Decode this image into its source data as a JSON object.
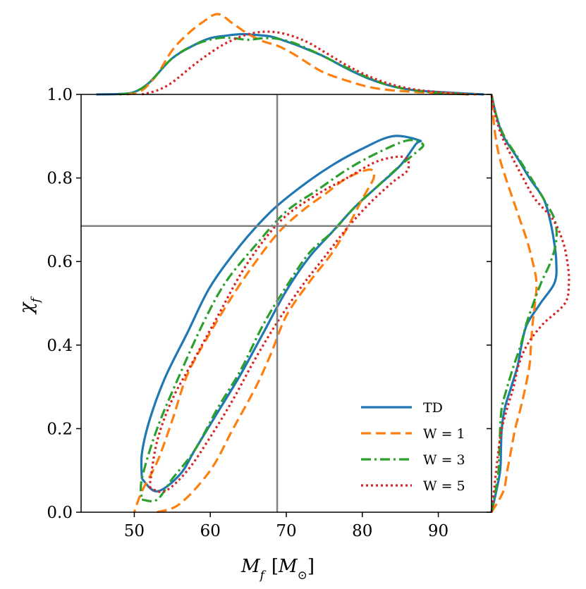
{
  "chart_data": {
    "type": "line",
    "title": "",
    "xlabel": "M_f [M_⊙]",
    "xlabel_main": "M",
    "xlabel_sub": "f",
    "xlabel_unit_open": "[",
    "xlabel_unit_main": "M",
    "xlabel_unit_sub": "⊙",
    "xlabel_unit_close": "]",
    "ylabel": "χ_f",
    "ylabel_main": "χ",
    "ylabel_sub": "f",
    "xlim": [
      43,
      97
    ],
    "ylim": [
      0.0,
      1.0
    ],
    "xticks": [
      50,
      60,
      70,
      80,
      90
    ],
    "xtick_labels": [
      "50",
      "60",
      "70",
      "80",
      "90"
    ],
    "yticks": [
      0.0,
      0.2,
      0.4,
      0.6,
      0.8,
      1.0
    ],
    "ytick_labels": [
      "0.0",
      "0.2",
      "0.4",
      "0.6",
      "0.8",
      "1.0"
    ],
    "grid": false,
    "legend_position": "lower-right",
    "reference_lines": {
      "x": 68.8,
      "y": 0.685,
      "color": "#808080"
    },
    "series": [
      {
        "name": "TD",
        "color": "#1f77b4",
        "dash": "solid",
        "contour": [
          [
            51,
            0.08
          ],
          [
            53,
            0.05
          ],
          [
            56,
            0.09
          ],
          [
            58,
            0.15
          ],
          [
            61,
            0.24
          ],
          [
            64,
            0.33
          ],
          [
            67,
            0.43
          ],
          [
            70,
            0.53
          ],
          [
            73,
            0.61
          ],
          [
            76,
            0.67
          ],
          [
            79,
            0.73
          ],
          [
            82,
            0.78
          ],
          [
            85,
            0.83
          ],
          [
            87,
            0.88
          ],
          [
            87.5,
            0.89
          ],
          [
            84,
            0.9
          ],
          [
            80,
            0.87
          ],
          [
            76,
            0.83
          ],
          [
            72,
            0.78
          ],
          [
            68,
            0.72
          ],
          [
            64,
            0.64
          ],
          [
            60,
            0.54
          ],
          [
            57,
            0.43
          ],
          [
            54,
            0.32
          ],
          [
            52,
            0.22
          ],
          [
            51,
            0.14
          ],
          [
            51,
            0.08
          ]
        ],
        "marginal_x": [
          [
            45,
            0.0
          ],
          [
            48,
            0.005
          ],
          [
            50,
            0.03
          ],
          [
            52,
            0.15
          ],
          [
            55,
            0.45
          ],
          [
            58,
            0.62
          ],
          [
            60,
            0.7
          ],
          [
            62,
            0.73
          ],
          [
            64,
            0.75
          ],
          [
            66,
            0.74
          ],
          [
            68,
            0.72
          ],
          [
            70,
            0.66
          ],
          [
            72,
            0.59
          ],
          [
            75,
            0.47
          ],
          [
            78,
            0.32
          ],
          [
            81,
            0.19
          ],
          [
            84,
            0.1
          ],
          [
            87,
            0.05
          ],
          [
            90,
            0.03
          ],
          [
            93,
            0.015
          ],
          [
            96,
            0.0
          ]
        ],
        "marginal_y": [
          [
            0.0,
            0.0
          ],
          [
            0.05,
            0.06
          ],
          [
            0.1,
            0.11
          ],
          [
            0.15,
            0.12
          ],
          [
            0.2,
            0.13
          ],
          [
            0.25,
            0.17
          ],
          [
            0.3,
            0.25
          ],
          [
            0.35,
            0.33
          ],
          [
            0.4,
            0.38
          ],
          [
            0.45,
            0.45
          ],
          [
            0.5,
            0.62
          ],
          [
            0.55,
            0.8
          ],
          [
            0.6,
            0.82
          ],
          [
            0.65,
            0.79
          ],
          [
            0.7,
            0.74
          ],
          [
            0.75,
            0.66
          ],
          [
            0.8,
            0.48
          ],
          [
            0.85,
            0.32
          ],
          [
            0.9,
            0.15
          ],
          [
            0.95,
            0.06
          ],
          [
            1.0,
            0.0
          ]
        ]
      },
      {
        "name": "W = 1",
        "color": "#ff7f0e",
        "dash": "dashed",
        "contour": [
          [
            53,
            0.0
          ],
          [
            56,
            0.02
          ],
          [
            60,
            0.1
          ],
          [
            63,
            0.2
          ],
          [
            66,
            0.3
          ],
          [
            68,
            0.38
          ],
          [
            70,
            0.47
          ],
          [
            73,
            0.55
          ],
          [
            76,
            0.62
          ],
          [
            78,
            0.68
          ],
          [
            80,
            0.75
          ],
          [
            81.5,
            0.8
          ],
          [
            81,
            0.82
          ],
          [
            78,
            0.8
          ],
          [
            75,
            0.76
          ],
          [
            72,
            0.72
          ],
          [
            69,
            0.67
          ],
          [
            66,
            0.6
          ],
          [
            63,
            0.52
          ],
          [
            60,
            0.43
          ],
          [
            57,
            0.33
          ],
          [
            55,
            0.22
          ],
          [
            53,
            0.12
          ],
          [
            51,
            0.05
          ],
          [
            50,
            0.0
          ]
        ],
        "marginal_x": [
          [
            49,
            0.0
          ],
          [
            51,
            0.05
          ],
          [
            53,
            0.25
          ],
          [
            55,
            0.55
          ],
          [
            57,
            0.75
          ],
          [
            59,
            0.9
          ],
          [
            61,
            1.0
          ],
          [
            63,
            0.88
          ],
          [
            65,
            0.75
          ],
          [
            67,
            0.66
          ],
          [
            69,
            0.6
          ],
          [
            71,
            0.5
          ],
          [
            73,
            0.38
          ],
          [
            75,
            0.27
          ],
          [
            78,
            0.17
          ],
          [
            81,
            0.09
          ],
          [
            84,
            0.05
          ],
          [
            87,
            0.03
          ],
          [
            91,
            0.01
          ],
          [
            95,
            0.0
          ]
        ],
        "marginal_y": [
          [
            0.0,
            0.0
          ],
          [
            0.05,
            0.15
          ],
          [
            0.1,
            0.2
          ],
          [
            0.15,
            0.25
          ],
          [
            0.2,
            0.3
          ],
          [
            0.25,
            0.37
          ],
          [
            0.3,
            0.43
          ],
          [
            0.35,
            0.48
          ],
          [
            0.4,
            0.5
          ],
          [
            0.45,
            0.52
          ],
          [
            0.5,
            0.55
          ],
          [
            0.55,
            0.57
          ],
          [
            0.6,
            0.52
          ],
          [
            0.65,
            0.45
          ],
          [
            0.7,
            0.36
          ],
          [
            0.75,
            0.27
          ],
          [
            0.8,
            0.18
          ],
          [
            0.85,
            0.1
          ],
          [
            0.9,
            0.05
          ],
          [
            0.95,
            0.02
          ],
          [
            1.0,
            0.0
          ]
        ]
      },
      {
        "name": "W = 3",
        "color": "#2ca02c",
        "dash": "dashdot",
        "contour": [
          [
            51,
            0.03
          ],
          [
            53,
            0.03
          ],
          [
            55,
            0.08
          ],
          [
            58,
            0.15
          ],
          [
            61,
            0.25
          ],
          [
            64,
            0.34
          ],
          [
            67,
            0.45
          ],
          [
            70,
            0.54
          ],
          [
            73,
            0.62
          ],
          [
            76,
            0.67
          ],
          [
            79,
            0.73
          ],
          [
            82,
            0.78
          ],
          [
            85,
            0.83
          ],
          [
            87,
            0.86
          ],
          [
            88,
            0.88
          ],
          [
            86,
            0.89
          ],
          [
            82,
            0.86
          ],
          [
            78,
            0.82
          ],
          [
            74,
            0.77
          ],
          [
            70,
            0.72
          ],
          [
            66,
            0.64
          ],
          [
            62,
            0.55
          ],
          [
            59,
            0.45
          ],
          [
            56,
            0.33
          ],
          [
            53,
            0.2
          ],
          [
            51,
            0.08
          ],
          [
            51,
            0.03
          ]
        ],
        "marginal_x": [
          [
            48,
            0.0
          ],
          [
            50,
            0.03
          ],
          [
            52,
            0.15
          ],
          [
            55,
            0.45
          ],
          [
            58,
            0.62
          ],
          [
            61,
            0.7
          ],
          [
            63,
            0.7
          ],
          [
            65,
            0.68
          ],
          [
            67,
            0.7
          ],
          [
            69,
            0.69
          ],
          [
            71,
            0.64
          ],
          [
            73,
            0.56
          ],
          [
            75,
            0.47
          ],
          [
            78,
            0.33
          ],
          [
            81,
            0.2
          ],
          [
            84,
            0.1
          ],
          [
            87,
            0.05
          ],
          [
            90,
            0.02
          ],
          [
            94,
            0.0
          ]
        ],
        "marginal_y": [
          [
            0.0,
            0.0
          ],
          [
            0.05,
            0.05
          ],
          [
            0.1,
            0.09
          ],
          [
            0.15,
            0.1
          ],
          [
            0.2,
            0.11
          ],
          [
            0.25,
            0.13
          ],
          [
            0.3,
            0.2
          ],
          [
            0.35,
            0.28
          ],
          [
            0.4,
            0.37
          ],
          [
            0.45,
            0.44
          ],
          [
            0.5,
            0.53
          ],
          [
            0.55,
            0.63
          ],
          [
            0.6,
            0.75
          ],
          [
            0.65,
            0.82
          ],
          [
            0.7,
            0.8
          ],
          [
            0.75,
            0.66
          ],
          [
            0.8,
            0.5
          ],
          [
            0.85,
            0.33
          ],
          [
            0.9,
            0.16
          ],
          [
            0.95,
            0.06
          ],
          [
            1.0,
            0.0
          ]
        ]
      },
      {
        "name": "W = 5",
        "color": "#d62728",
        "dash": "dotted",
        "contour": [
          [
            52,
            0.06
          ],
          [
            54,
            0.05
          ],
          [
            57,
            0.1
          ],
          [
            60,
            0.18
          ],
          [
            63,
            0.27
          ],
          [
            66,
            0.37
          ],
          [
            69,
            0.46
          ],
          [
            72,
            0.54
          ],
          [
            75,
            0.61
          ],
          [
            78,
            0.68
          ],
          [
            81,
            0.74
          ],
          [
            84,
            0.79
          ],
          [
            86,
            0.82
          ],
          [
            85.5,
            0.85
          ],
          [
            82,
            0.84
          ],
          [
            78,
            0.8
          ],
          [
            74,
            0.76
          ],
          [
            70,
            0.71
          ],
          [
            67,
            0.65
          ],
          [
            64,
            0.57
          ],
          [
            61,
            0.47
          ],
          [
            58,
            0.37
          ],
          [
            55,
            0.27
          ],
          [
            53,
            0.17
          ],
          [
            52,
            0.06
          ]
        ],
        "marginal_x": [
          [
            51,
            0.0
          ],
          [
            53,
            0.05
          ],
          [
            55,
            0.15
          ],
          [
            58,
            0.38
          ],
          [
            61,
            0.58
          ],
          [
            63,
            0.68
          ],
          [
            65,
            0.75
          ],
          [
            67,
            0.78
          ],
          [
            69,
            0.77
          ],
          [
            71,
            0.72
          ],
          [
            73,
            0.64
          ],
          [
            75,
            0.53
          ],
          [
            78,
            0.36
          ],
          [
            81,
            0.22
          ],
          [
            84,
            0.12
          ],
          [
            87,
            0.06
          ],
          [
            90,
            0.03
          ],
          [
            94,
            0.0
          ]
        ],
        "marginal_y": [
          [
            0.0,
            0.0
          ],
          [
            0.05,
            0.03
          ],
          [
            0.1,
            0.06
          ],
          [
            0.15,
            0.09
          ],
          [
            0.2,
            0.13
          ],
          [
            0.25,
            0.2
          ],
          [
            0.3,
            0.28
          ],
          [
            0.35,
            0.34
          ],
          [
            0.4,
            0.45
          ],
          [
            0.45,
            0.65
          ],
          [
            0.5,
            0.93
          ],
          [
            0.55,
            0.98
          ],
          [
            0.6,
            0.96
          ],
          [
            0.65,
            0.9
          ],
          [
            0.7,
            0.78
          ],
          [
            0.75,
            0.55
          ],
          [
            0.8,
            0.4
          ],
          [
            0.85,
            0.26
          ],
          [
            0.9,
            0.13
          ],
          [
            0.95,
            0.05
          ],
          [
            1.0,
            0.0
          ]
        ]
      }
    ]
  }
}
